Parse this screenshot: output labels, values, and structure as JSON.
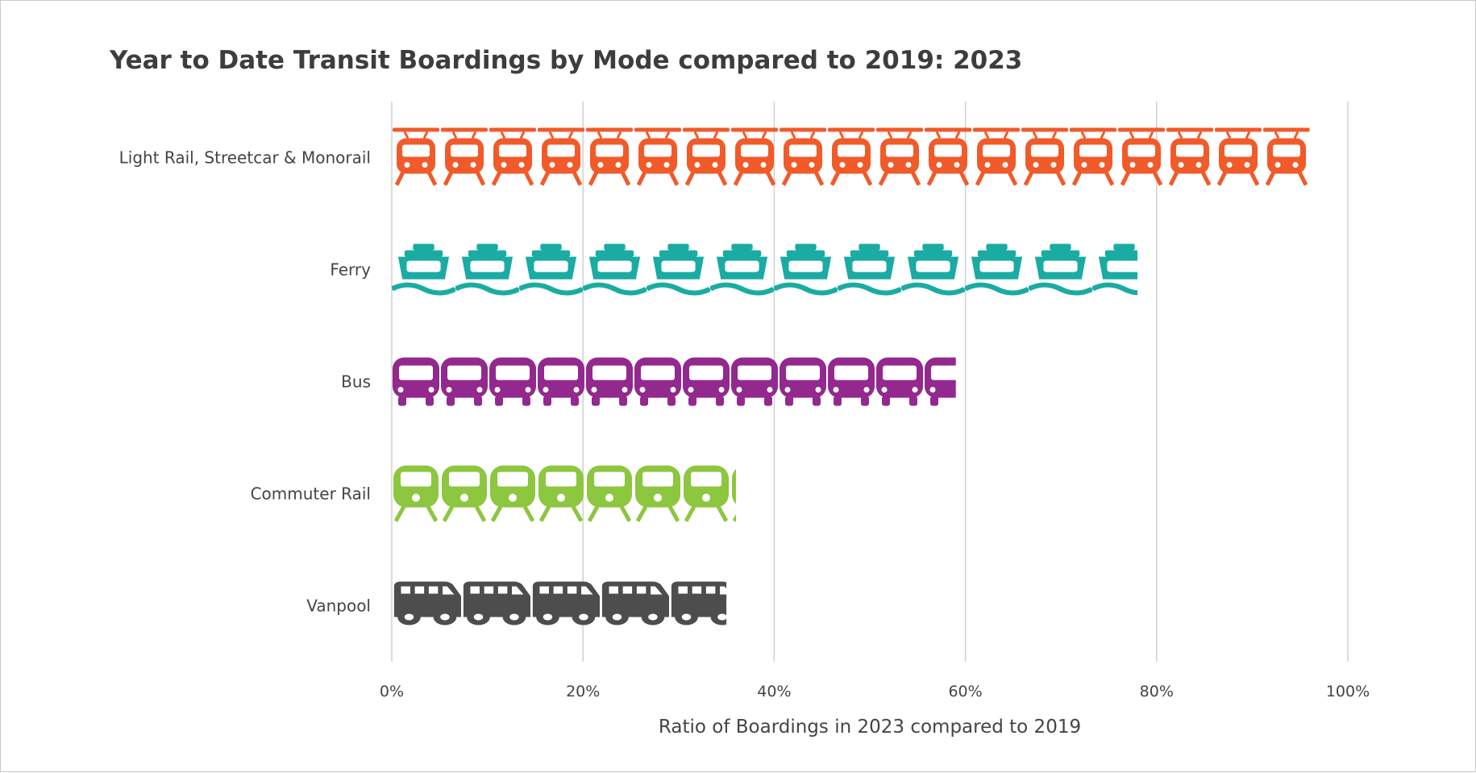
{
  "chart_data": {
    "type": "bar",
    "orientation": "horizontal",
    "title": "Year to Date Transit Boardings by Mode compared to 2019: 2023",
    "xlabel": "Ratio of Boardings in 2023 compared to 2019",
    "ylabel": "",
    "xlim": [
      0,
      100
    ],
    "x_ticks": [
      "0%",
      "20%",
      "40%",
      "60%",
      "80%",
      "100%"
    ],
    "grid": "vertical",
    "categories": [
      "Light Rail, Streetcar & Monorail",
      "Ferry",
      "Bus",
      "Commuter Rail",
      "Vanpool"
    ],
    "values": [
      96,
      78,
      59,
      36,
      35
    ],
    "unit": "percent",
    "colors": [
      "#f15a29",
      "#1aaba3",
      "#93288e",
      "#8dc63f",
      "#4d4d4d"
    ],
    "icons": [
      "light-rail-icon",
      "ferry-icon",
      "bus-icon",
      "commuter-rail-icon",
      "vanpool-icon"
    ]
  }
}
